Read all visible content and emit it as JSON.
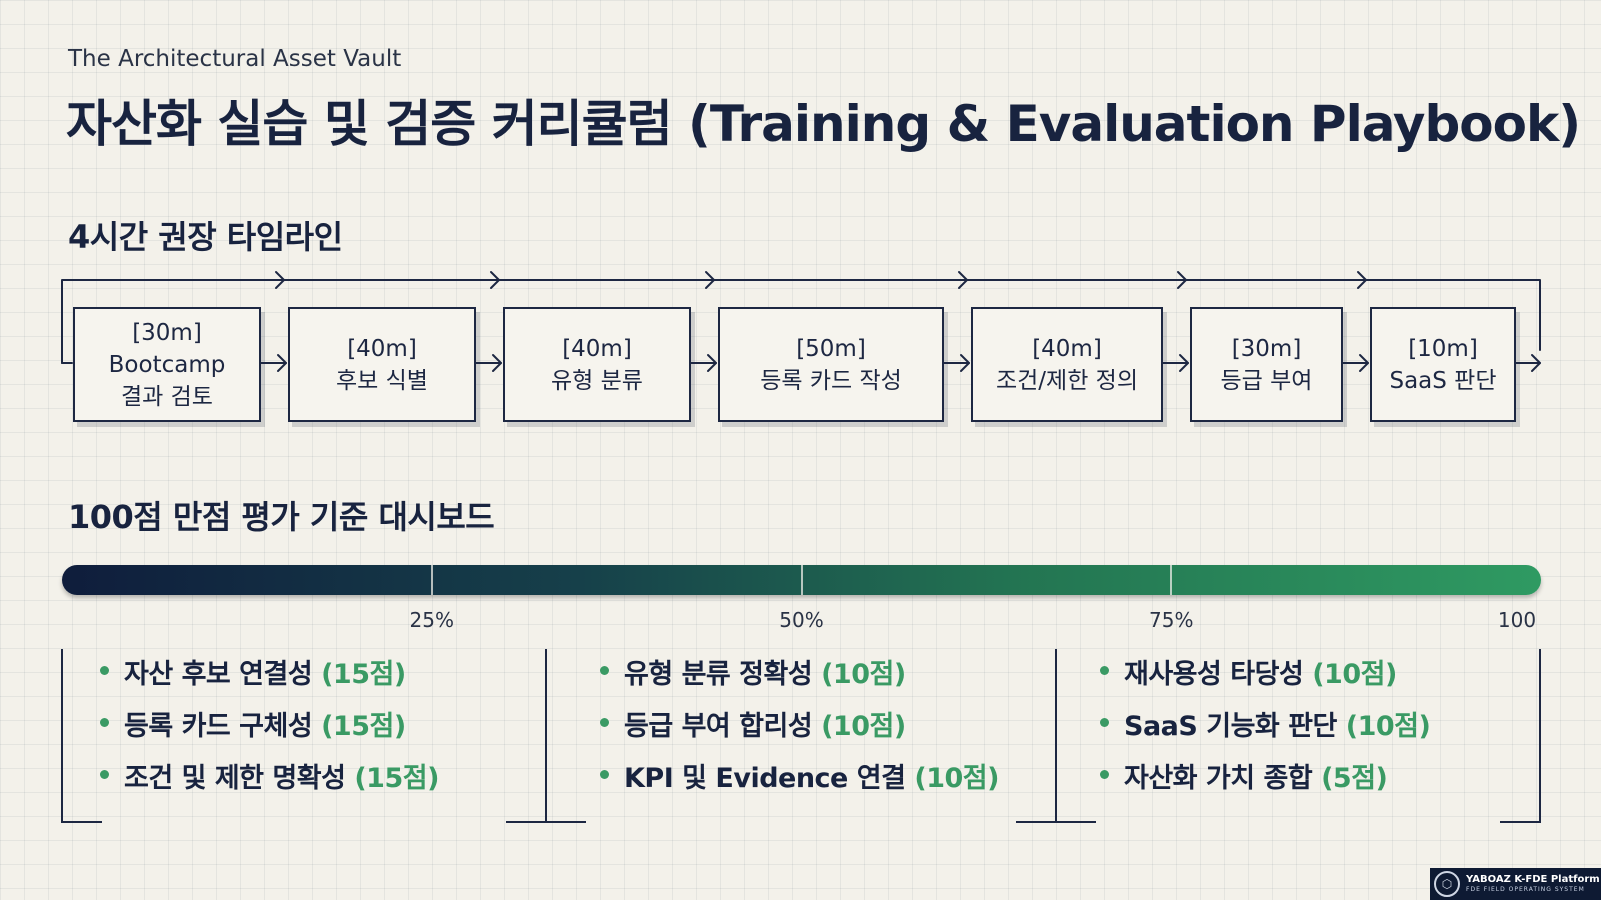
{
  "header": {
    "subtitle": "The Architectural Asset Vault",
    "title": "자산화 실습 및 검증 커리큘럼 (Training & Evaluation Playbook)"
  },
  "timeline": {
    "heading": "4시간 권장 타임라인",
    "steps": [
      {
        "duration": "[30m]",
        "line1": "Bootcamp",
        "line2": "결과 검토"
      },
      {
        "duration": "[40m]",
        "line1": "후보 식별"
      },
      {
        "duration": "[40m]",
        "line1": "유형 분류"
      },
      {
        "duration": "[50m]",
        "line1": "등록 카드 작성"
      },
      {
        "duration": "[40m]",
        "line1": "조건/제한 정의"
      },
      {
        "duration": "[30m]",
        "line1": "등급 부여"
      },
      {
        "duration": "[10m]",
        "line1": "SaaS 판단"
      }
    ]
  },
  "scoring": {
    "heading": "100점 만점 평가 기준 대시보드",
    "ticks": [
      "25%",
      "50%",
      "75%",
      "100"
    ],
    "tick_fractions": [
      0.25,
      0.5,
      0.75,
      1.0
    ],
    "colors": {
      "bar_start": "#0f1d3c",
      "bar_end": "#2f9a62",
      "points": "#3a9a64"
    },
    "groups": [
      {
        "items": [
          {
            "label": "자산 후보 연결성",
            "points": "(15점)"
          },
          {
            "label": "등록 카드 구체성",
            "points": "(15점)"
          },
          {
            "label": "조건 및 제한 명확성",
            "points": "(15점)"
          }
        ]
      },
      {
        "items": [
          {
            "label": "유형 분류 정확성",
            "points": "(10점)"
          },
          {
            "label": "등급 부여 합리성",
            "points": "(10점)"
          },
          {
            "label": "KPI 및 Evidence 연결",
            "points": "(10점)"
          }
        ]
      },
      {
        "items": [
          {
            "label": "재사용성 타당성",
            "points": "(10점)"
          },
          {
            "label": "SaaS 기능화 판단",
            "points": "(10점)"
          },
          {
            "label": "자산화 가치 종합",
            "points": "(5점)"
          }
        ]
      }
    ]
  },
  "brand": {
    "name": "YABOAZ K-FDE Platform",
    "sub": "FDE FIELD OPERATING SYSTEM",
    "logo_icon": "hexagon-logo-icon"
  }
}
